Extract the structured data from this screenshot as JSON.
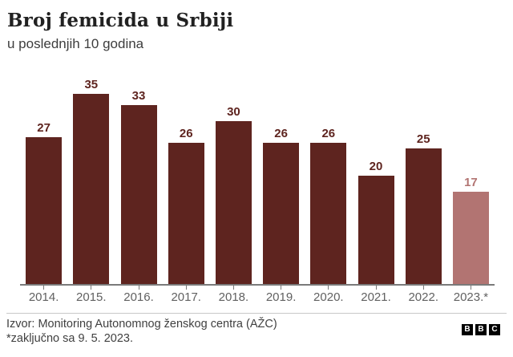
{
  "header": {
    "title": "Broj femicida u Srbiji",
    "subtitle": "u poslednjih 10 godina"
  },
  "chart_data": {
    "type": "bar",
    "title": "Broj femicida u Srbiji",
    "subtitle": "u poslednjih 10 godina",
    "categories": [
      "2014.",
      "2015.",
      "2016.",
      "2017.",
      "2018.",
      "2019.",
      "2020.",
      "2021.",
      "2022.",
      "2023.*"
    ],
    "values": [
      27,
      35,
      33,
      26,
      30,
      26,
      26,
      20,
      25,
      17
    ],
    "xlabel": "",
    "ylabel": "",
    "ylim": [
      0,
      35
    ],
    "grid": false,
    "legend": false,
    "data_labels": true,
    "bar_color": "#5e241f",
    "highlight_color": "#b27472",
    "highlight_index": 9,
    "axis_color": "#7a7a7a",
    "tick_label_color": "#616161"
  },
  "footer": {
    "source": "Izvor: Monitoring Autonomnog ženskog centra (AŽC)",
    "note": "*zaključno sa 9. 5. 2023.",
    "logo_letters": [
      "B",
      "B",
      "C"
    ]
  }
}
